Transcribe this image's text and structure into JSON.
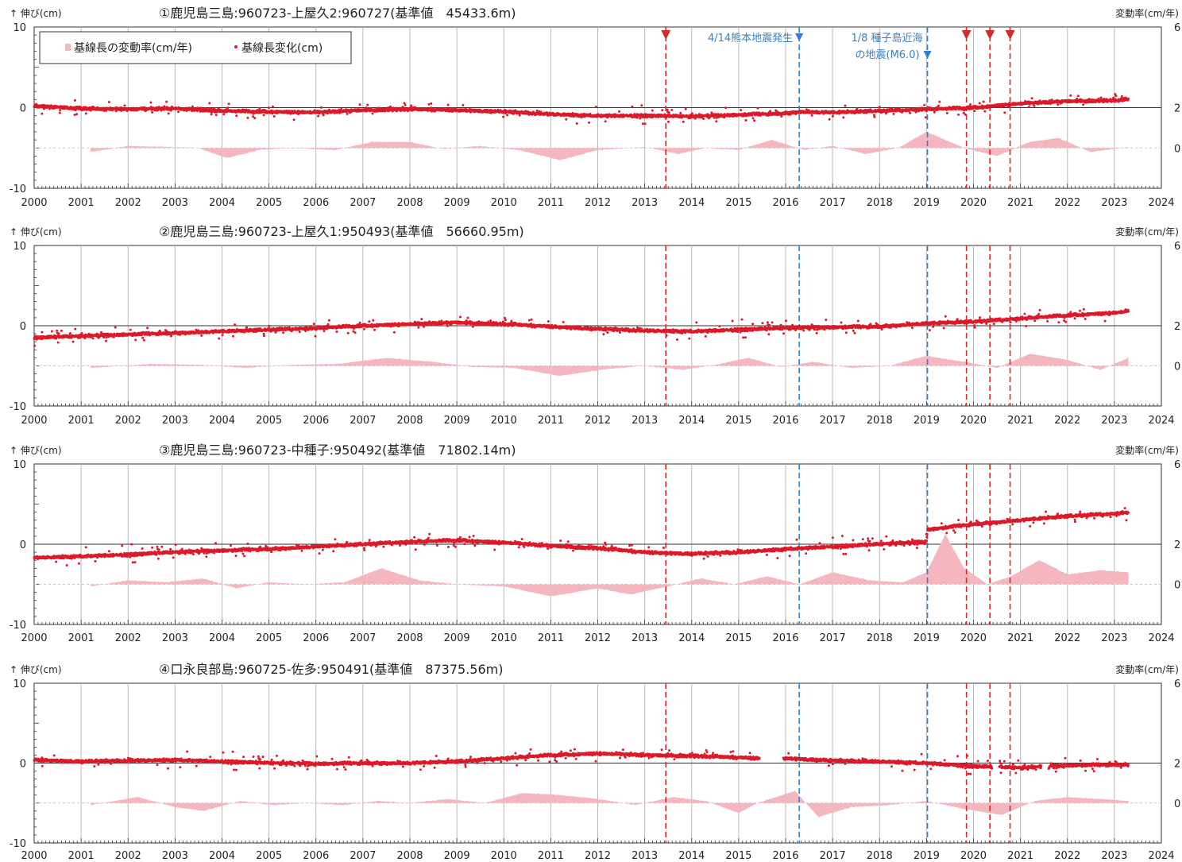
{
  "legend": {
    "rate_label": "基線長の変動率(cm/年)",
    "change_label": "基線長変化(cm)"
  },
  "axis_labels": {
    "left": "↑ 伸び(cm)",
    "right": "変動率(cm/年)"
  },
  "annotations": {
    "kumamoto": "4/14熊本地震発生",
    "tanegashima_line1": "1/8 種子島近海",
    "tanegashima_line2": "の地震(M6.0)"
  },
  "colors": {
    "points": "#dd1a2a",
    "rate_fill": "#f4b6bf",
    "red_event": "#d42a2a",
    "blue_event": "#2f7fd0",
    "grid": "#b8b8b8"
  },
  "chart_data": [
    {
      "type": "scatter",
      "title": "①鹿児島三島:960723-上屋久2:960727(基準値　45433.6m)",
      "ylabel": "↑ 伸び(cm)",
      "y2label": "変動率(cm/年)",
      "xlim": [
        2000,
        2024
      ],
      "ylim": [
        -10,
        10
      ],
      "y2lim": [
        -2,
        6
      ],
      "x_ticks": [
        2000,
        2001,
        2002,
        2003,
        2004,
        2005,
        2006,
        2007,
        2008,
        2009,
        2010,
        2011,
        2012,
        2013,
        2014,
        2015,
        2016,
        2017,
        2018,
        2019,
        2020,
        2021,
        2022,
        2023,
        2024
      ],
      "y_ticks": [
        -10,
        0,
        10
      ],
      "y2_ticks": [
        0,
        2,
        6
      ],
      "red_events": [
        2013.45,
        2019.85,
        2020.35,
        2020.78
      ],
      "blue_events": [
        2016.29,
        2019.02
      ],
      "baseline_change": [
        [
          2000.0,
          0.2
        ],
        [
          2001.0,
          -0.1
        ],
        [
          2002.0,
          -0.2
        ],
        [
          2003.0,
          -0.1
        ],
        [
          2004.0,
          -0.4
        ],
        [
          2005.0,
          -0.5
        ],
        [
          2006.0,
          -0.6
        ],
        [
          2007.0,
          -0.3
        ],
        [
          2008.0,
          -0.2
        ],
        [
          2009.0,
          -0.3
        ],
        [
          2010.0,
          -0.5
        ],
        [
          2011.0,
          -0.8
        ],
        [
          2012.0,
          -1.0
        ],
        [
          2013.0,
          -1.0
        ],
        [
          2014.0,
          -1.1
        ],
        [
          2015.0,
          -0.9
        ],
        [
          2016.0,
          -0.7
        ],
        [
          2016.3,
          -0.5
        ],
        [
          2017.0,
          -0.6
        ],
        [
          2018.0,
          -0.4
        ],
        [
          2019.0,
          -0.2
        ],
        [
          2020.0,
          0.0
        ],
        [
          2021.0,
          0.5
        ],
        [
          2022.0,
          0.8
        ],
        [
          2023.0,
          0.9
        ],
        [
          2023.3,
          1.0
        ]
      ],
      "rate_change": [
        [
          2001.2,
          -0.2
        ],
        [
          2002.0,
          0.1
        ],
        [
          2002.8,
          0.05
        ],
        [
          2003.5,
          0.0
        ],
        [
          2004.1,
          -0.5
        ],
        [
          2004.8,
          -0.1
        ],
        [
          2005.5,
          0.0
        ],
        [
          2006.4,
          -0.1
        ],
        [
          2007.2,
          0.3
        ],
        [
          2008.0,
          0.3
        ],
        [
          2008.7,
          -0.05
        ],
        [
          2009.5,
          0.1
        ],
        [
          2010.3,
          -0.1
        ],
        [
          2011.2,
          -0.6
        ],
        [
          2012.0,
          -0.1
        ],
        [
          2013.0,
          0.05
        ],
        [
          2013.7,
          -0.3
        ],
        [
          2014.3,
          0.0
        ],
        [
          2015.0,
          -0.1
        ],
        [
          2015.7,
          0.4
        ],
        [
          2016.4,
          -0.1
        ],
        [
          2017.0,
          0.1
        ],
        [
          2017.7,
          -0.3
        ],
        [
          2018.4,
          0.0
        ],
        [
          2019.0,
          0.8
        ],
        [
          2019.8,
          0.0
        ],
        [
          2020.5,
          -0.4
        ],
        [
          2021.2,
          0.3
        ],
        [
          2021.8,
          0.5
        ],
        [
          2022.5,
          -0.2
        ],
        [
          2023.3,
          0.05
        ]
      ]
    },
    {
      "type": "scatter",
      "title": "②鹿児島三島:960723-上屋久1:950493(基準値　56660.95m)",
      "ylabel": "↑ 伸び(cm)",
      "y2label": "変動率(cm/年)",
      "xlim": [
        2000,
        2024
      ],
      "ylim": [
        -10,
        10
      ],
      "y2lim": [
        -2,
        6
      ],
      "x_ticks": [
        2000,
        2001,
        2002,
        2003,
        2004,
        2005,
        2006,
        2007,
        2008,
        2009,
        2010,
        2011,
        2012,
        2013,
        2014,
        2015,
        2016,
        2017,
        2018,
        2019,
        2020,
        2021,
        2022,
        2023,
        2024
      ],
      "y_ticks": [
        -10,
        0,
        10
      ],
      "y2_ticks": [
        0,
        2,
        6
      ],
      "red_events": [
        2013.45,
        2019.85,
        2020.35,
        2020.78
      ],
      "blue_events": [
        2016.29,
        2019.02
      ],
      "baseline_change": [
        [
          2000.0,
          -1.5
        ],
        [
          2001.0,
          -1.3
        ],
        [
          2002.0,
          -1.1
        ],
        [
          2003.0,
          -0.9
        ],
        [
          2004.0,
          -0.7
        ],
        [
          2005.0,
          -0.5
        ],
        [
          2006.0,
          -0.3
        ],
        [
          2007.0,
          0.0
        ],
        [
          2008.0,
          0.2
        ],
        [
          2009.0,
          0.4
        ],
        [
          2010.0,
          0.2
        ],
        [
          2011.0,
          -0.1
        ],
        [
          2012.0,
          -0.4
        ],
        [
          2013.0,
          -0.6
        ],
        [
          2014.0,
          -0.7
        ],
        [
          2015.0,
          -0.5
        ],
        [
          2016.0,
          -0.3
        ],
        [
          2017.0,
          -0.2
        ],
        [
          2018.0,
          -0.1
        ],
        [
          2019.0,
          0.3
        ],
        [
          2020.0,
          0.5
        ],
        [
          2021.0,
          0.9
        ],
        [
          2022.0,
          1.3
        ],
        [
          2023.0,
          1.6
        ],
        [
          2023.3,
          1.8
        ]
      ],
      "rate_change": [
        [
          2001.2,
          -0.1
        ],
        [
          2002.5,
          0.1
        ],
        [
          2003.5,
          0.05
        ],
        [
          2004.5,
          -0.1
        ],
        [
          2005.5,
          0.05
        ],
        [
          2006.5,
          0.1
        ],
        [
          2007.5,
          0.4
        ],
        [
          2008.5,
          0.2
        ],
        [
          2009.3,
          -0.05
        ],
        [
          2010.2,
          -0.1
        ],
        [
          2011.2,
          -0.5
        ],
        [
          2012.2,
          -0.15
        ],
        [
          2013.0,
          0.0
        ],
        [
          2013.8,
          -0.2
        ],
        [
          2014.5,
          0.05
        ],
        [
          2015.2,
          0.4
        ],
        [
          2015.9,
          -0.05
        ],
        [
          2016.6,
          0.2
        ],
        [
          2017.4,
          -0.1
        ],
        [
          2018.2,
          0.0
        ],
        [
          2019.0,
          0.5
        ],
        [
          2019.8,
          0.2
        ],
        [
          2020.5,
          -0.1
        ],
        [
          2021.2,
          0.6
        ],
        [
          2022.0,
          0.3
        ],
        [
          2022.7,
          -0.2
        ],
        [
          2023.3,
          0.4
        ]
      ]
    },
    {
      "type": "scatter",
      "title": "③鹿児島三島:960723-中種子:950492(基準値　71802.14m)",
      "ylabel": "↑ 伸び(cm)",
      "y2label": "変動率(cm/年)",
      "xlim": [
        2000,
        2024
      ],
      "ylim": [
        -10,
        10
      ],
      "y2lim": [
        -2,
        6
      ],
      "x_ticks": [
        2000,
        2001,
        2002,
        2003,
        2004,
        2005,
        2006,
        2007,
        2008,
        2009,
        2010,
        2011,
        2012,
        2013,
        2014,
        2015,
        2016,
        2017,
        2018,
        2019,
        2020,
        2021,
        2022,
        2023,
        2024
      ],
      "y_ticks": [
        -10,
        0,
        10
      ],
      "y2_ticks": [
        0,
        2,
        6
      ],
      "red_events": [
        2013.45,
        2019.85,
        2020.35,
        2020.78
      ],
      "blue_events": [
        2016.29,
        2019.02
      ],
      "baseline_change": [
        [
          2000.0,
          -1.7
        ],
        [
          2001.0,
          -1.5
        ],
        [
          2002.0,
          -1.3
        ],
        [
          2003.0,
          -1.0
        ],
        [
          2004.0,
          -0.8
        ],
        [
          2005.0,
          -0.6
        ],
        [
          2006.0,
          -0.3
        ],
        [
          2007.0,
          0.0
        ],
        [
          2008.0,
          0.3
        ],
        [
          2009.0,
          0.5
        ],
        [
          2010.0,
          0.2
        ],
        [
          2011.0,
          -0.2
        ],
        [
          2012.0,
          -0.5
        ],
        [
          2013.0,
          -1.0
        ],
        [
          2014.0,
          -1.2
        ],
        [
          2015.0,
          -1.0
        ],
        [
          2016.0,
          -0.6
        ],
        [
          2017.0,
          -0.3
        ],
        [
          2018.0,
          0.0
        ],
        [
          2019.0,
          0.3
        ],
        [
          2019.02,
          1.8
        ],
        [
          2020.0,
          2.5
        ],
        [
          2021.0,
          3.0
        ],
        [
          2022.0,
          3.5
        ],
        [
          2023.0,
          3.8
        ],
        [
          2023.3,
          4.0
        ]
      ],
      "rate_change": [
        [
          2001.2,
          -0.1
        ],
        [
          2002.0,
          0.2
        ],
        [
          2002.8,
          0.1
        ],
        [
          2003.6,
          0.3
        ],
        [
          2004.3,
          -0.2
        ],
        [
          2005.0,
          0.1
        ],
        [
          2005.8,
          0.0
        ],
        [
          2006.6,
          0.1
        ],
        [
          2007.4,
          0.8
        ],
        [
          2008.2,
          0.2
        ],
        [
          2009.0,
          0.0
        ],
        [
          2010.0,
          -0.1
        ],
        [
          2011.0,
          -0.6
        ],
        [
          2012.0,
          -0.2
        ],
        [
          2012.7,
          -0.5
        ],
        [
          2013.5,
          -0.1
        ],
        [
          2014.2,
          0.3
        ],
        [
          2014.9,
          0.0
        ],
        [
          2015.6,
          0.4
        ],
        [
          2016.3,
          0.0
        ],
        [
          2017.0,
          0.6
        ],
        [
          2017.8,
          0.2
        ],
        [
          2018.5,
          0.1
        ],
        [
          2019.0,
          0.6
        ],
        [
          2019.4,
          2.5
        ],
        [
          2019.8,
          0.8
        ],
        [
          2020.3,
          0.0
        ],
        [
          2020.8,
          0.4
        ],
        [
          2021.4,
          1.2
        ],
        [
          2022.0,
          0.5
        ],
        [
          2022.7,
          0.7
        ],
        [
          2023.3,
          0.6
        ]
      ]
    },
    {
      "type": "scatter",
      "title": "④口永良部島:960725-佐多:950491(基準値　87375.56m)",
      "ylabel": "↑ 伸び(cm)",
      "y2label": "変動率(cm/年)",
      "xlim": [
        2000,
        2024
      ],
      "ylim": [
        -10,
        10
      ],
      "y2lim": [
        -2,
        6
      ],
      "x_ticks": [
        2000,
        2001,
        2002,
        2003,
        2004,
        2005,
        2006,
        2007,
        2008,
        2009,
        2010,
        2011,
        2012,
        2013,
        2014,
        2015,
        2016,
        2017,
        2018,
        2019,
        2020,
        2021,
        2022,
        2023,
        2024
      ],
      "y_ticks": [
        -10,
        0,
        10
      ],
      "y2_ticks": [
        0,
        2,
        6
      ],
      "red_events": [
        2013.45,
        2019.85,
        2020.35,
        2020.78
      ],
      "blue_events": [
        2016.29,
        2019.02
      ],
      "gaps": [
        [
          2015.45,
          2015.95
        ],
        [
          2020.4,
          2020.55
        ],
        [
          2021.45,
          2021.6
        ]
      ],
      "baseline_change": [
        [
          2000.0,
          0.4
        ],
        [
          2001.0,
          0.2
        ],
        [
          2002.0,
          0.3
        ],
        [
          2003.0,
          0.4
        ],
        [
          2004.0,
          0.2
        ],
        [
          2005.0,
          0.0
        ],
        [
          2006.0,
          -0.1
        ],
        [
          2007.0,
          0.0
        ],
        [
          2008.0,
          0.0
        ],
        [
          2009.0,
          0.2
        ],
        [
          2010.0,
          0.6
        ],
        [
          2011.0,
          1.0
        ],
        [
          2012.0,
          1.2
        ],
        [
          2013.0,
          1.0
        ],
        [
          2014.0,
          0.9
        ],
        [
          2015.0,
          0.7
        ],
        [
          2015.4,
          0.6
        ],
        [
          2016.0,
          0.6
        ],
        [
          2017.0,
          0.3
        ],
        [
          2018.0,
          0.2
        ],
        [
          2019.0,
          0.0
        ],
        [
          2020.0,
          -0.4
        ],
        [
          2021.0,
          -0.6
        ],
        [
          2022.0,
          -0.3
        ],
        [
          2023.0,
          -0.2
        ],
        [
          2023.3,
          -0.2
        ]
      ],
      "rate_change": [
        [
          2001.2,
          -0.1
        ],
        [
          2002.2,
          0.3
        ],
        [
          2003.0,
          -0.2
        ],
        [
          2003.6,
          -0.4
        ],
        [
          2004.4,
          0.1
        ],
        [
          2005.1,
          -0.1
        ],
        [
          2005.8,
          0.0
        ],
        [
          2006.6,
          -0.1
        ],
        [
          2007.3,
          0.1
        ],
        [
          2008.0,
          0.0
        ],
        [
          2008.8,
          0.2
        ],
        [
          2009.6,
          0.0
        ],
        [
          2010.4,
          0.5
        ],
        [
          2011.2,
          0.4
        ],
        [
          2012.0,
          0.2
        ],
        [
          2012.8,
          -0.1
        ],
        [
          2013.6,
          0.3
        ],
        [
          2014.3,
          0.1
        ],
        [
          2015.0,
          -0.5
        ],
        [
          2015.4,
          0.0
        ],
        [
          2016.2,
          0.6
        ],
        [
          2016.7,
          -0.7
        ],
        [
          2017.4,
          -0.2
        ],
        [
          2018.2,
          -0.1
        ],
        [
          2019.0,
          0.1
        ],
        [
          2019.8,
          -0.3
        ],
        [
          2020.6,
          -0.6
        ],
        [
          2021.3,
          0.1
        ],
        [
          2022.0,
          0.3
        ],
        [
          2022.7,
          0.2
        ],
        [
          2023.3,
          0.1
        ]
      ]
    }
  ]
}
